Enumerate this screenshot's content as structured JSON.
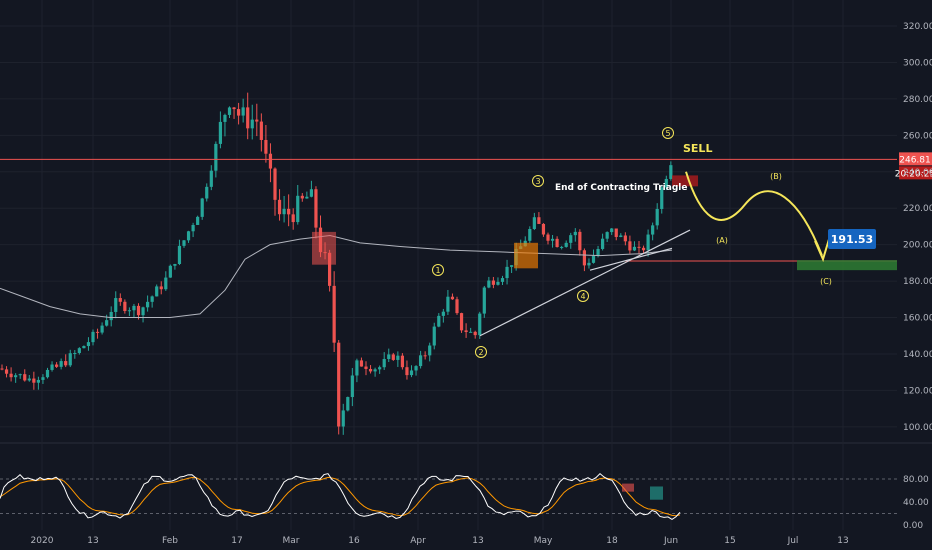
{
  "chart_data": {
    "type": "candlestick",
    "ylim": [
      80,
      325
    ],
    "y_ticks": [
      "320.00",
      "300.00",
      "280.00",
      "260.00",
      "240.00",
      "220.00",
      "200.00",
      "180.00",
      "160.00",
      "140.00",
      "120.00",
      "100.00"
    ],
    "x_ticks": [
      "2020",
      "13",
      "Feb",
      "17",
      "Mar",
      "16",
      "Apr",
      "13",
      "May",
      "18",
      "Jun",
      "15",
      "Jul",
      "13"
    ],
    "price_badge": "246.81",
    "countdown_badge": "20:20:25",
    "target_label": "191.53",
    "annotation": "End of Contracting Triagle",
    "sell_label": "SELL",
    "wave_labels": [
      "1",
      "2",
      "3",
      "4",
      "5"
    ],
    "abc_labels": [
      "(A)",
      "(B)",
      "(C)"
    ],
    "oscillator": {
      "ylim": [
        0,
        100
      ],
      "y_ticks": [
        "80.00",
        "40.00",
        "0.00"
      ],
      "overbought": 80,
      "oversold": 20
    },
    "colors": {
      "up": "#26a69a",
      "down": "#ef5350",
      "ma": "#b2b5be",
      "projection": "#f5e65a",
      "price_line": "#ef5350",
      "target_zone": "#2e7d32",
      "target_badge": "#1565c0",
      "osc_k": "#ffffff",
      "osc_d": "#ff9800"
    }
  }
}
